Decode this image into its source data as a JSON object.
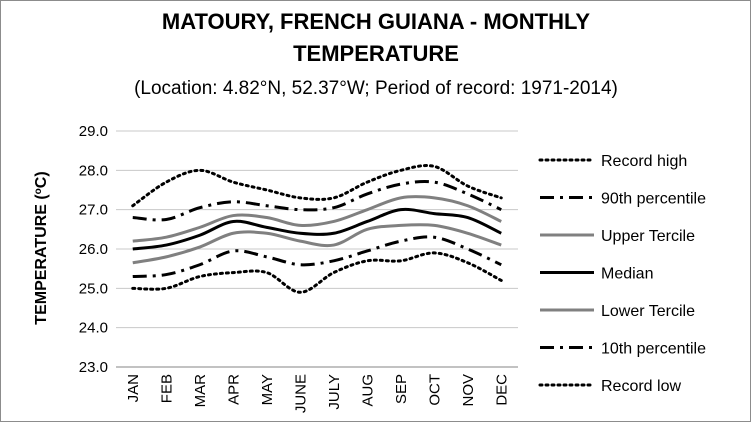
{
  "chart_data": {
    "type": "line",
    "title_line1": "MATOURY, FRENCH GUIANA - MONTHLY",
    "title_line2": "TEMPERATURE",
    "subtitle": "(Location: 4.82°N, 52.37°W; Period of record: 1971-2014)",
    "ylabel_main": "TEMPERATURE (",
    "ylabel_sup": "o",
    "ylabel_end": "C)",
    "xlabel": "",
    "ylim": [
      23.0,
      29.0
    ],
    "yticks": [
      "23.0",
      "24.0",
      "25.0",
      "26.0",
      "27.0",
      "28.0",
      "29.0"
    ],
    "grid": true,
    "legend_position": "right",
    "categories": [
      "JAN",
      "FEB",
      "MAR",
      "APR",
      "MAY",
      "JUNE",
      "JULY",
      "AUG",
      "SEP",
      "OCT",
      "NOV",
      "DEC"
    ],
    "series": [
      {
        "name": "Record high",
        "color": "#000000",
        "style": "dotted",
        "values": [
          27.1,
          27.7,
          28.0,
          27.7,
          27.5,
          27.3,
          27.3,
          27.7,
          28.0,
          28.1,
          27.6,
          27.3
        ]
      },
      {
        "name": "90th percentile",
        "color": "#000000",
        "style": "dashdot",
        "values": [
          26.8,
          26.75,
          27.05,
          27.2,
          27.1,
          27.0,
          27.05,
          27.4,
          27.65,
          27.7,
          27.4,
          27.0
        ]
      },
      {
        "name": "Upper Tercile",
        "color": "#808080",
        "style": "solid",
        "values": [
          26.2,
          26.3,
          26.55,
          26.85,
          26.8,
          26.6,
          26.7,
          27.0,
          27.3,
          27.3,
          27.1,
          26.7
        ]
      },
      {
        "name": "Median",
        "color": "#000000",
        "style": "solid",
        "values": [
          26.0,
          26.1,
          26.35,
          26.7,
          26.55,
          26.4,
          26.4,
          26.7,
          27.0,
          26.9,
          26.8,
          26.4
        ]
      },
      {
        "name": "Lower Tercile",
        "color": "#808080",
        "style": "solid",
        "values": [
          25.65,
          25.8,
          26.05,
          26.4,
          26.4,
          26.2,
          26.1,
          26.5,
          26.6,
          26.6,
          26.4,
          26.1
        ]
      },
      {
        "name": "10th percentile",
        "color": "#000000",
        "style": "dashdot",
        "values": [
          25.3,
          25.35,
          25.6,
          25.95,
          25.8,
          25.6,
          25.7,
          25.95,
          26.2,
          26.3,
          26.0,
          25.6
        ]
      },
      {
        "name": "Record low",
        "color": "#000000",
        "style": "dotted",
        "values": [
          25.0,
          25.0,
          25.3,
          25.4,
          25.4,
          24.9,
          25.4,
          25.7,
          25.7,
          25.9,
          25.65,
          25.2
        ]
      }
    ]
  }
}
